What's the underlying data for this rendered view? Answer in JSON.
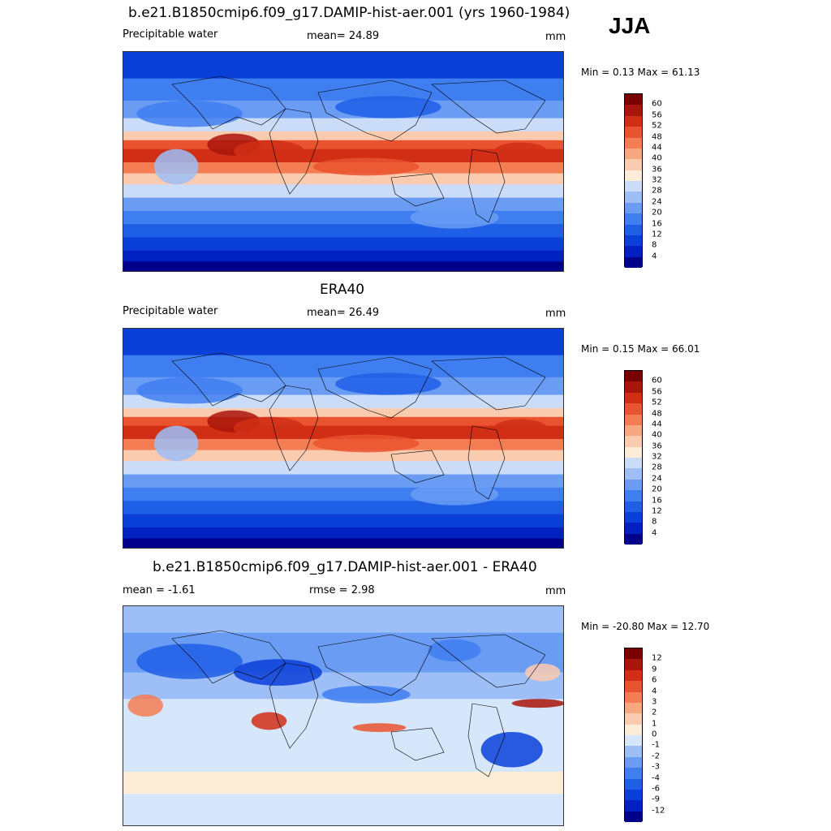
{
  "season": "JJA",
  "panels": [
    {
      "title": "b.e21.B1850cmip6.f09_g17.DAMIP-hist-aer.001 (yrs 1960-1984)",
      "left_label": "Precipitable water",
      "center_label": "mean=  24.89",
      "units": "mm",
      "minmax": "Min =   0.13 Max =  61.13"
    },
    {
      "title": "ERA40",
      "left_label": "Precipitable water",
      "center_label": "mean=  26.49",
      "units": "mm",
      "minmax": "Min =   0.15 Max =  66.01"
    },
    {
      "title": "b.e21.B1850cmip6.f09_g17.DAMIP-hist-aer.001 - ERA40",
      "left_label": "mean =  -1.61",
      "center_label": "rmse =   2.98",
      "units": "mm",
      "minmax": "Min = -20.80 Max =  12.70"
    }
  ],
  "chart_data": [
    {
      "type": "heatmap",
      "title": "b.e21.B1850cmip6.f09_g17.DAMIP-hist-aer.001 (yrs 1960-1984)",
      "field": "Precipitable water",
      "units": "mm",
      "mean": 24.89,
      "min": 0.13,
      "max": 61.13,
      "colorbar_levels": [
        4,
        8,
        12,
        16,
        20,
        24,
        28,
        32,
        36,
        40,
        44,
        48,
        52,
        56,
        60
      ],
      "colorbar_colors": [
        "#00008b",
        "#0020c0",
        "#0a3fd8",
        "#1f5fe6",
        "#3f7ef0",
        "#6a9cf4",
        "#9dbef7",
        "#cbdcf9",
        "#fdecd8",
        "#fbcbb0",
        "#f8a87f",
        "#f47d53",
        "#ea532f",
        "#d02f15",
        "#a9150a",
        "#7a0000"
      ],
      "pattern": "tropical maximum near equator, decreasing toward poles"
    },
    {
      "type": "heatmap",
      "title": "ERA40",
      "field": "Precipitable water",
      "units": "mm",
      "mean": 26.49,
      "min": 0.15,
      "max": 66.01,
      "colorbar_levels": [
        4,
        8,
        12,
        16,
        20,
        24,
        28,
        32,
        36,
        40,
        44,
        48,
        52,
        56,
        60
      ],
      "colorbar_colors": [
        "#00008b",
        "#0020c0",
        "#0a3fd8",
        "#1f5fe6",
        "#3f7ef0",
        "#6a9cf4",
        "#9dbef7",
        "#cbdcf9",
        "#fdecd8",
        "#fbcbb0",
        "#f8a87f",
        "#f47d53",
        "#ea532f",
        "#d02f15",
        "#a9150a",
        "#7a0000"
      ],
      "pattern": "tropical maximum near equator, decreasing toward poles"
    },
    {
      "type": "heatmap",
      "title": "b.e21.B1850cmip6.f09_g17.DAMIP-hist-aer.001 - ERA40",
      "field": "difference",
      "units": "mm",
      "mean": -1.61,
      "rmse": 2.98,
      "min": -20.8,
      "max": 12.7,
      "colorbar_levels": [
        -12,
        -9,
        -6,
        -4,
        -3,
        -2,
        -1,
        0,
        1,
        2,
        3,
        4,
        6,
        9,
        12
      ],
      "colorbar_colors": [
        "#00008b",
        "#0020c0",
        "#0a3fd8",
        "#1f5fe6",
        "#3f7ef0",
        "#6a9cf4",
        "#9dbef7",
        "#d6e6fb",
        "#fdecd8",
        "#fbcbb0",
        "#f8a87f",
        "#f47d53",
        "#ea532f",
        "#d02f15",
        "#a9150a",
        "#7a0000"
      ],
      "pattern": "mostly negative (blue) over northern hemisphere, positive patches in tropics"
    }
  ]
}
